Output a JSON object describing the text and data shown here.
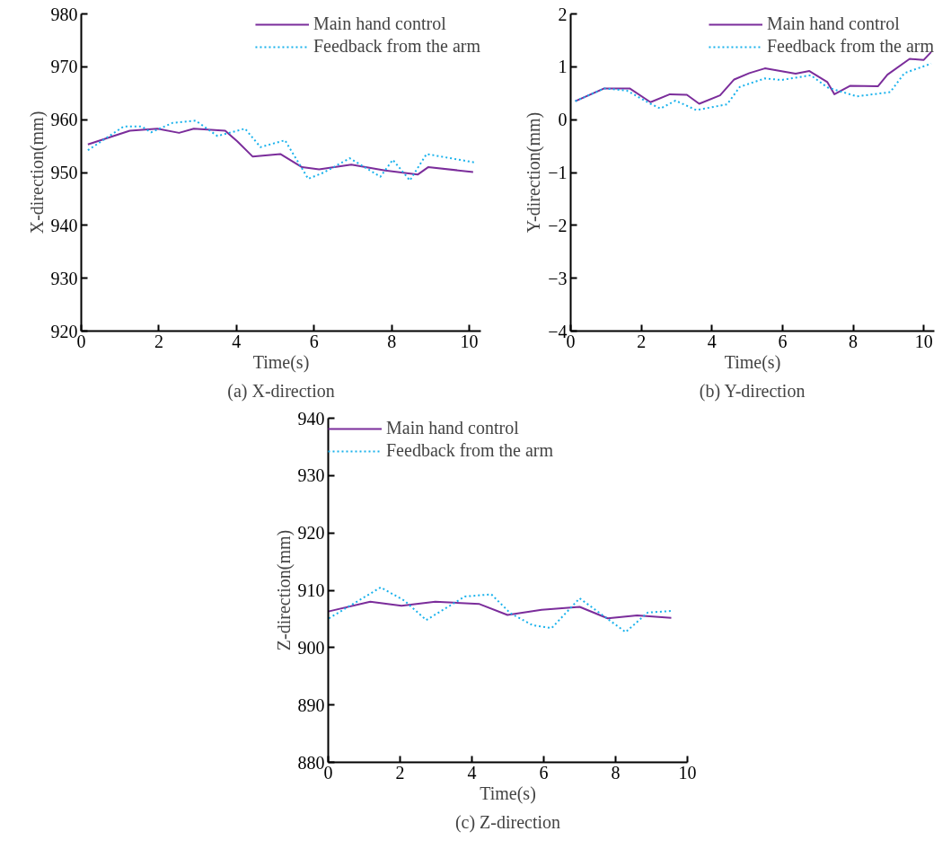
{
  "chart_data": [
    {
      "type": "line",
      "xlabel": "Time(s)",
      "ylabel": "X-direction(mm)",
      "annotations": [
        "(a) X-direction"
      ],
      "xlim": [
        0,
        10.3
      ],
      "ylim": [
        920,
        980
      ],
      "xticks": [
        0,
        2,
        4,
        6,
        8,
        10
      ],
      "yticks": [
        920,
        930,
        940,
        950,
        960,
        970,
        980
      ],
      "grid": false,
      "legend": "top right",
      "marker": "none",
      "series": [
        {
          "name": "Main hand control",
          "color": "#7b2d9b",
          "line_style": "solid",
          "x": [
            0.17,
            1.25,
            1.96,
            2.52,
            2.9,
            3.71,
            4.02,
            4.42,
            5.13,
            5.69,
            6.13,
            6.96,
            7.83,
            8.67,
            8.94,
            10.1
          ],
          "values": [
            955.3,
            957.9,
            958.3,
            957.5,
            958.3,
            957.9,
            955.9,
            953.0,
            953.5,
            951.0,
            950.6,
            951.5,
            950.4,
            949.6,
            951.0,
            950.1
          ]
        },
        {
          "name": "Feedback from the arm",
          "color": "#1ab2ec",
          "line_style": "dotted",
          "x": [
            0.17,
            1.09,
            1.56,
            1.8,
            2.36,
            2.95,
            3.51,
            4.22,
            4.62,
            5.25,
            5.85,
            6.25,
            6.92,
            7.71,
            8.03,
            8.47,
            8.9,
            10.14
          ],
          "values": [
            954.2,
            958.7,
            958.7,
            957.6,
            959.4,
            959.8,
            956.9,
            958.3,
            954.8,
            956.1,
            948.8,
            950.0,
            952.7,
            949.2,
            952.4,
            948.5,
            953.5,
            951.9
          ]
        }
      ]
    },
    {
      "type": "line",
      "xlabel": "Time(s)",
      "ylabel": "Y-direction(mm)",
      "annotations": [
        "(b) Y-direction"
      ],
      "xlim": [
        0,
        10.3
      ],
      "ylim": [
        -4,
        2
      ],
      "xticks": [
        0,
        2,
        4,
        6,
        8,
        10
      ],
      "yticks": [
        -4,
        -3,
        -2,
        -1,
        0,
        1,
        2
      ],
      "grid": false,
      "legend": "top right",
      "marker": "none",
      "series": [
        {
          "name": "Main hand control",
          "color": "#7b2d9b",
          "line_style": "solid",
          "x": [
            0.13,
            0.95,
            1.67,
            2.26,
            2.81,
            3.29,
            3.64,
            4.23,
            4.63,
            5.06,
            5.5,
            6.37,
            6.76,
            7.27,
            7.47,
            7.91,
            8.7,
            8.97,
            9.6,
            10.0,
            10.21
          ],
          "values": [
            0.35,
            0.59,
            0.59,
            0.33,
            0.48,
            0.47,
            0.3,
            0.46,
            0.76,
            0.88,
            0.97,
            0.87,
            0.92,
            0.71,
            0.48,
            0.64,
            0.63,
            0.85,
            1.15,
            1.13,
            1.28
          ]
        },
        {
          "name": "Feedback from the arm",
          "color": "#1ab2ec",
          "line_style": "dotted",
          "x": [
            0.13,
            0.95,
            1.59,
            2.26,
            2.54,
            2.97,
            3.56,
            4.43,
            4.79,
            5.5,
            5.97,
            6.8,
            7.27,
            8.1,
            9.05,
            9.45,
            10.21
          ],
          "values": [
            0.35,
            0.59,
            0.55,
            0.3,
            0.21,
            0.36,
            0.18,
            0.29,
            0.62,
            0.78,
            0.75,
            0.84,
            0.61,
            0.44,
            0.52,
            0.88,
            1.06
          ]
        }
      ]
    },
    {
      "type": "line",
      "xlabel": "Time(s)",
      "ylabel": "Z-direction(mm)",
      "annotations": [
        "(c) Z-direction"
      ],
      "xlim": [
        0,
        10
      ],
      "ylim": [
        880,
        940
      ],
      "xticks": [
        0,
        2,
        4,
        6,
        8,
        10
      ],
      "yticks": [
        880,
        890,
        900,
        910,
        920,
        930,
        940
      ],
      "grid": false,
      "legend": "top left",
      "marker": "none",
      "series": [
        {
          "name": "Main hand control",
          "color": "#7b2d9b",
          "line_style": "solid",
          "x": [
            0.0,
            1.17,
            2.04,
            2.98,
            4.21,
            4.99,
            5.94,
            7.0,
            7.78,
            8.6,
            9.55
          ],
          "values": [
            906.3,
            908.0,
            907.3,
            908.0,
            907.6,
            905.7,
            906.6,
            907.1,
            905.1,
            905.6,
            905.2
          ]
        },
        {
          "name": "Feedback from the arm",
          "color": "#1ab2ec",
          "line_style": "dotted",
          "x": [
            0.02,
            1.46,
            2.12,
            2.73,
            3.8,
            4.54,
            5.07,
            5.69,
            6.22,
            7.0,
            8.28,
            8.89,
            9.55
          ],
          "values": [
            905.1,
            910.5,
            908.2,
            904.8,
            908.9,
            909.3,
            906.0,
            903.9,
            903.4,
            908.6,
            902.7,
            906.1,
            906.4
          ]
        }
      ]
    }
  ]
}
